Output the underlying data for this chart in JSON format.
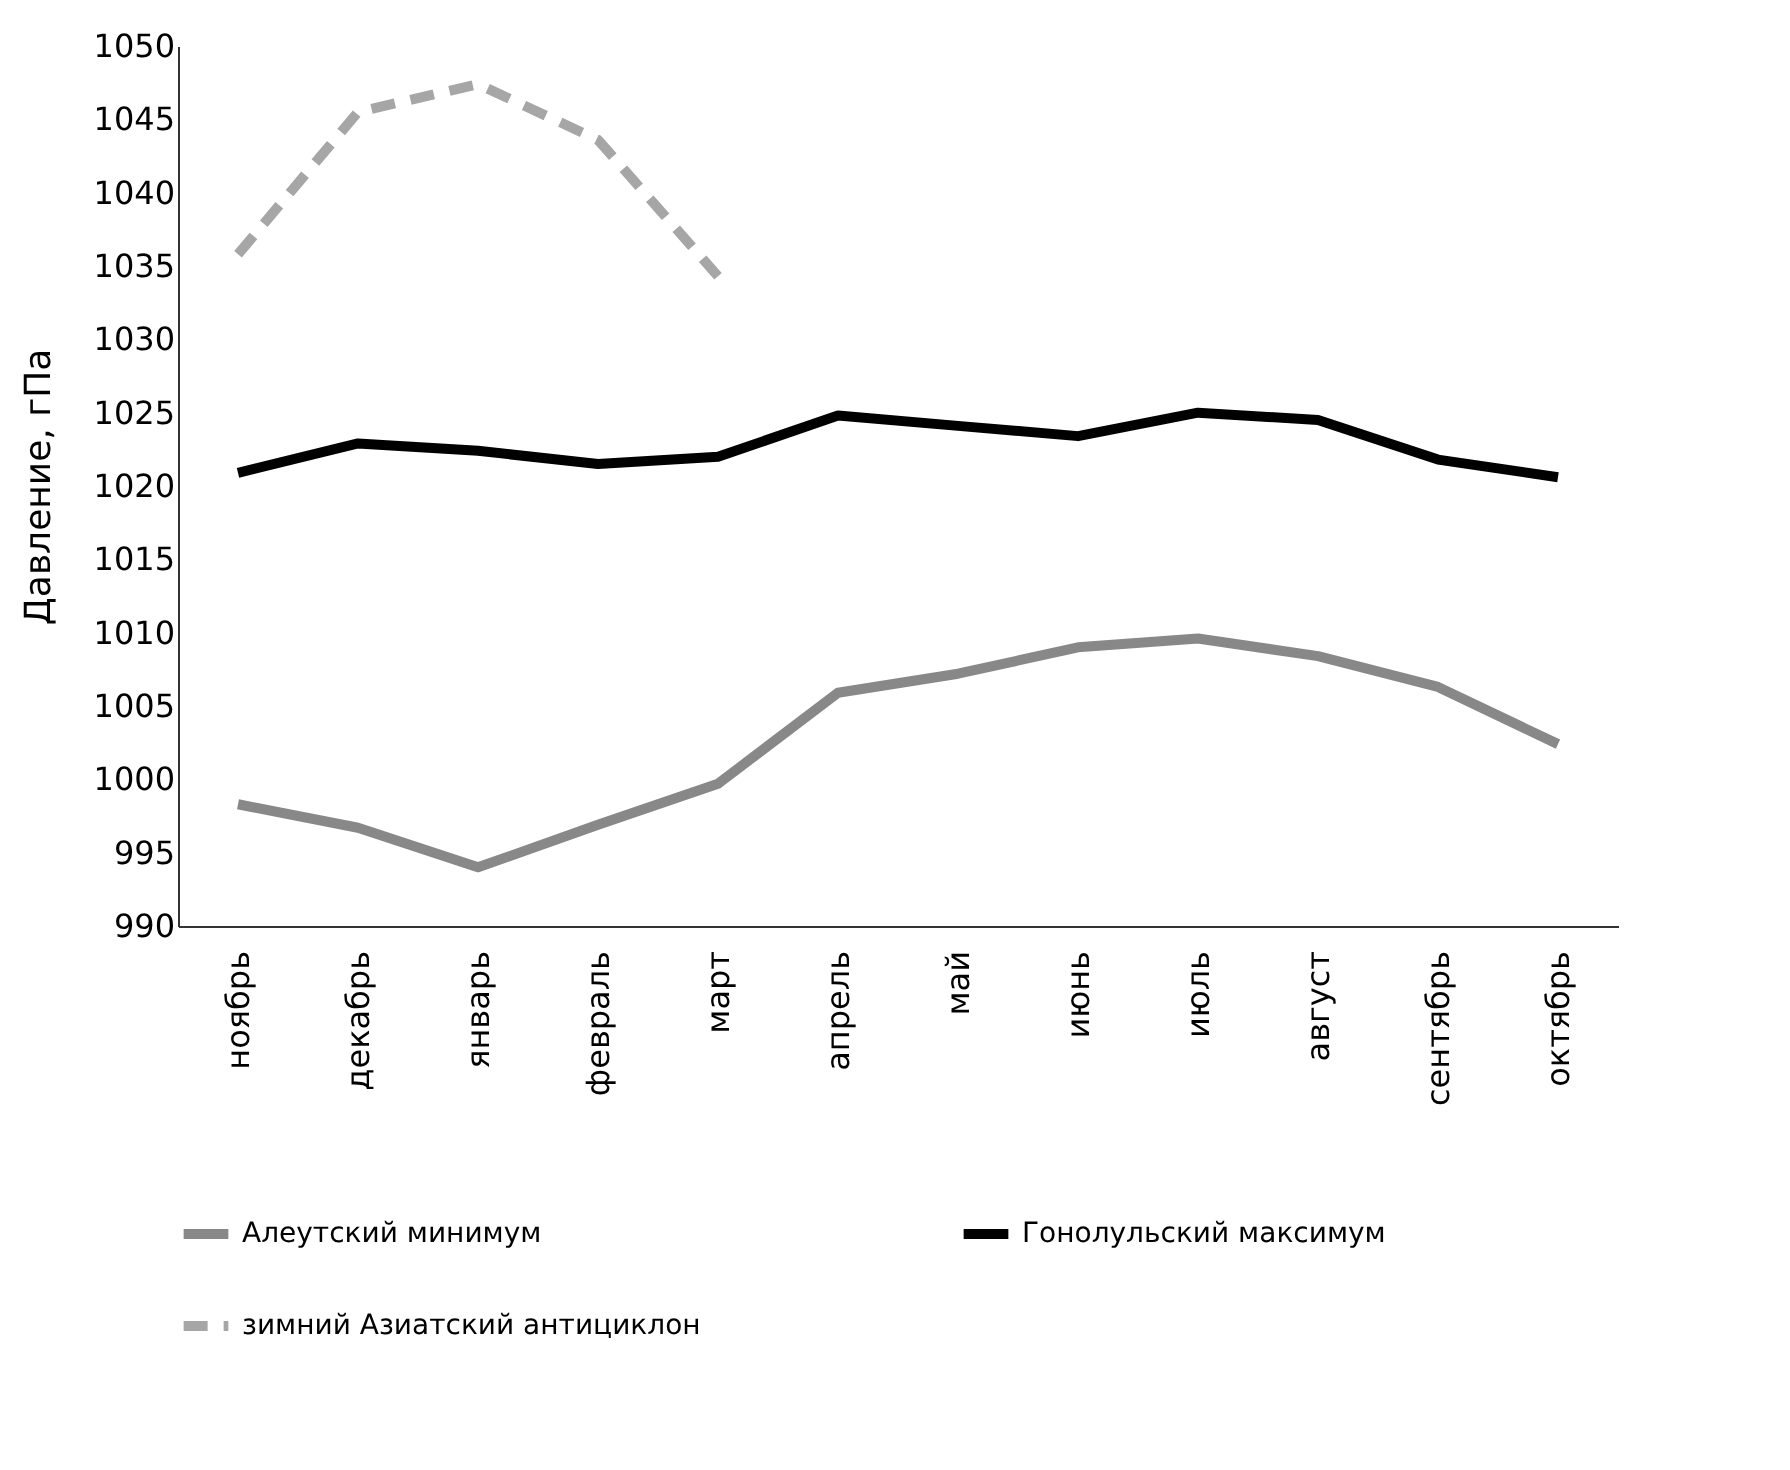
{
  "chart_data": {
    "type": "line",
    "ylabel": "Давление, гПа",
    "categories": [
      "ноябрь",
      "декабрь",
      "январь",
      "февраль",
      "март",
      "апрель",
      "май",
      "июнь",
      "июль",
      "август",
      "сентябрь",
      "октябрь"
    ],
    "series": [
      {
        "name": "Алеутский минимум",
        "color": "#888888",
        "line_style": "solid",
        "values": [
          998.3,
          996.7,
          994.0,
          996.9,
          999.7,
          1005.9,
          1007.2,
          1009.0,
          1009.6,
          1008.4,
          1006.3,
          1002.4
        ]
      },
      {
        "name": "Гонолульский максимум",
        "color": "#000000",
        "line_style": "solid",
        "values": [
          1020.9,
          1022.9,
          1022.4,
          1021.5,
          1022.0,
          1024.8,
          1024.1,
          1023.4,
          1025.0,
          1024.5,
          1021.8,
          1020.6
        ]
      },
      {
        "name": "зимний Азиатский антициклон",
        "color": "#a6a6a6",
        "line_style": "dashed",
        "values": [
          1035.8,
          1045.5,
          1047.4,
          1043.6,
          1034.3,
          null,
          null,
          null,
          null,
          null,
          null,
          null
        ]
      }
    ],
    "ylim": [
      990,
      1050
    ],
    "yticks": [
      990,
      995,
      1000,
      1005,
      1010,
      1015,
      1020,
      1025,
      1030,
      1035,
      1040,
      1045,
      1050
    ],
    "grid": false,
    "legend": "bottom",
    "marker": "none"
  }
}
